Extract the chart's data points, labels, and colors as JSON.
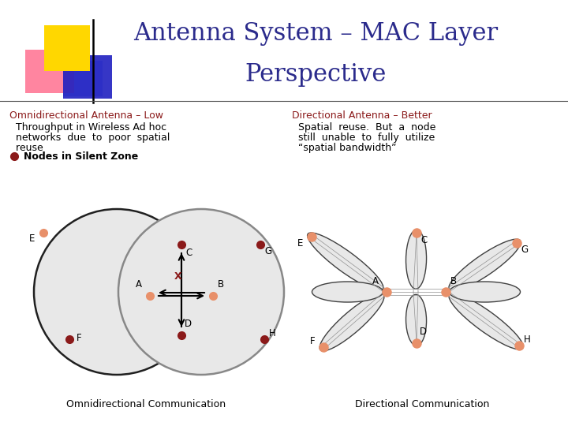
{
  "title_line1": "Antenna System – MAC Layer",
  "title_line2": "Perspective",
  "title_color": "#2B2B8C",
  "title_fontsize": 22,
  "bg_color": "#FFFFFF",
  "heading_color": "#8B1A1A",
  "heading_fontsize": 9,
  "body_fontsize": 9,
  "legend_text": "Nodes in Silent Zone",
  "omni_caption": "Omnidirectional Communication",
  "dir_caption": "Directional Communication",
  "caption_fontsize": 9,
  "node_dark": "#8B1A1A",
  "node_orange": "#E8906A",
  "circle_fill": "#E8E8E8",
  "beam_fill": "#E8E8E8",
  "beam_edge": "#404040",
  "logo_yellow": "#FFD700",
  "logo_pink": "#FF7090",
  "logo_blue_dark": "#2020C0",
  "logo_blue_light": "#5070FF"
}
